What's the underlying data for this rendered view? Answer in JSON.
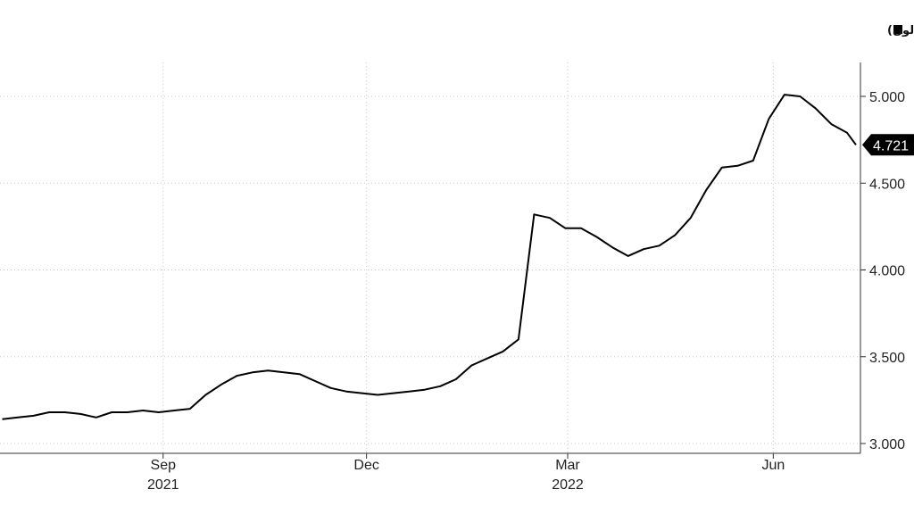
{
  "chart_data": {
    "type": "line",
    "title": "",
    "legend": {
      "label": "متوسط سعر التجزئة للبنزين الأمريكي (دولار للغالون)",
      "position": "top-right",
      "marker_color": "#000000"
    },
    "series": [
      {
        "name": "متوسط سعر التجزئة للبنزين الأمريكي (دولار للغالون)",
        "color": "#000000",
        "x": [
          "2021-06-21",
          "2021-06-28",
          "2021-07-05",
          "2021-07-12",
          "2021-07-19",
          "2021-07-26",
          "2021-08-02",
          "2021-08-09",
          "2021-08-16",
          "2021-08-23",
          "2021-08-30",
          "2021-09-06",
          "2021-09-13",
          "2021-09-20",
          "2021-09-27",
          "2021-10-04",
          "2021-10-11",
          "2021-10-18",
          "2021-10-25",
          "2021-11-01",
          "2021-11-08",
          "2021-11-15",
          "2021-11-22",
          "2021-11-29",
          "2021-12-06",
          "2021-12-13",
          "2021-12-20",
          "2021-12-27",
          "2022-01-03",
          "2022-01-10",
          "2022-01-17",
          "2022-01-24",
          "2022-01-31",
          "2022-02-07",
          "2022-02-14",
          "2022-02-21",
          "2022-02-28",
          "2022-03-07",
          "2022-03-14",
          "2022-03-21",
          "2022-03-28",
          "2022-04-04",
          "2022-04-11",
          "2022-04-18",
          "2022-04-25",
          "2022-05-02",
          "2022-05-09",
          "2022-05-16",
          "2022-05-23",
          "2022-05-30",
          "2022-06-06",
          "2022-06-13",
          "2022-06-20",
          "2022-06-27",
          "2022-07-04",
          "2022-07-08"
        ],
        "values": [
          3.14,
          3.15,
          3.16,
          3.18,
          3.18,
          3.17,
          3.15,
          3.18,
          3.18,
          3.19,
          3.18,
          3.19,
          3.2,
          3.28,
          3.34,
          3.39,
          3.41,
          3.42,
          3.41,
          3.4,
          3.36,
          3.32,
          3.3,
          3.29,
          3.28,
          3.29,
          3.3,
          3.31,
          3.33,
          3.37,
          3.45,
          3.49,
          3.53,
          3.6,
          4.32,
          4.3,
          4.24,
          4.24,
          4.19,
          4.13,
          4.08,
          4.12,
          4.14,
          4.2,
          4.3,
          4.46,
          4.59,
          4.6,
          4.63,
          4.87,
          5.01,
          5.0,
          4.93,
          4.84,
          4.79,
          4.721
        ]
      }
    ],
    "last_value_label": "4.721",
    "x_axis": {
      "ticks": [
        {
          "date": "2021-09-01",
          "label": "Sep"
        },
        {
          "date": "2021-12-01",
          "label": "Dec"
        },
        {
          "date": "2022-03-01",
          "label": "Mar"
        },
        {
          "date": "2022-06-01",
          "label": "Jun"
        }
      ],
      "years": [
        {
          "date": "2021-09-01",
          "label": "2021"
        },
        {
          "date": "2022-03-01",
          "label": "2022"
        }
      ],
      "range": [
        "2021-06-20",
        "2022-07-10"
      ]
    },
    "y_axis": {
      "ticks": [
        "3.000",
        "3.500",
        "4.000",
        "4.500",
        "5.000"
      ],
      "ylim": [
        2.95,
        5.2
      ],
      "position": "right"
    },
    "grid": true
  }
}
